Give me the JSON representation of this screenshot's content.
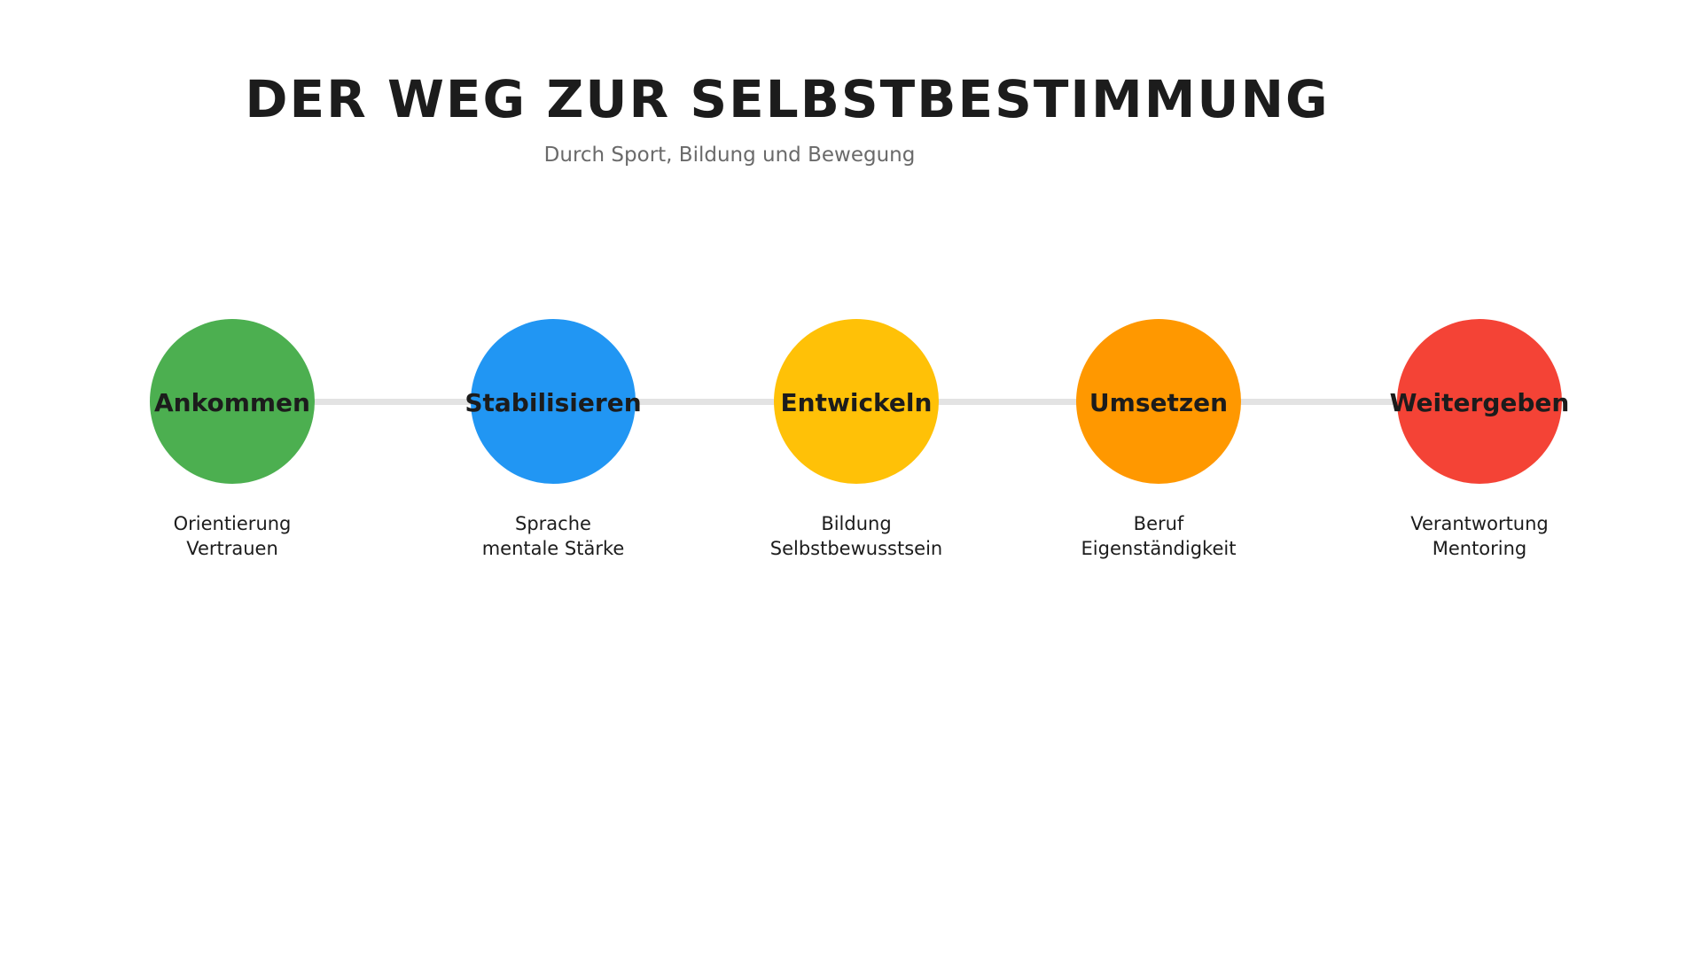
{
  "title": "DER WEG ZUR SELBSTBESTIMMUNG",
  "subtitle": "Durch Sport, Bildung und Bewegung",
  "steps": [
    {
      "label": "Ankommen",
      "color": "#4caf50",
      "lines": [
        "Orientierung",
        "Vertrauen"
      ]
    },
    {
      "label": "Stabilisieren",
      "color": "#2196f3",
      "lines": [
        "Sprache",
        "mentale Stärke"
      ]
    },
    {
      "label": "Entwickeln",
      "color": "#ffc107",
      "lines": [
        "Bildung",
        "Selbstbewusstsein"
      ]
    },
    {
      "label": "Umsetzen",
      "color": "#ff9800",
      "lines": [
        "Beruf",
        "Eigenständigkeit"
      ]
    },
    {
      "label": "Weitergeben",
      "color": "#f44336",
      "lines": [
        "Verantwortung",
        "Mentoring"
      ]
    }
  ]
}
